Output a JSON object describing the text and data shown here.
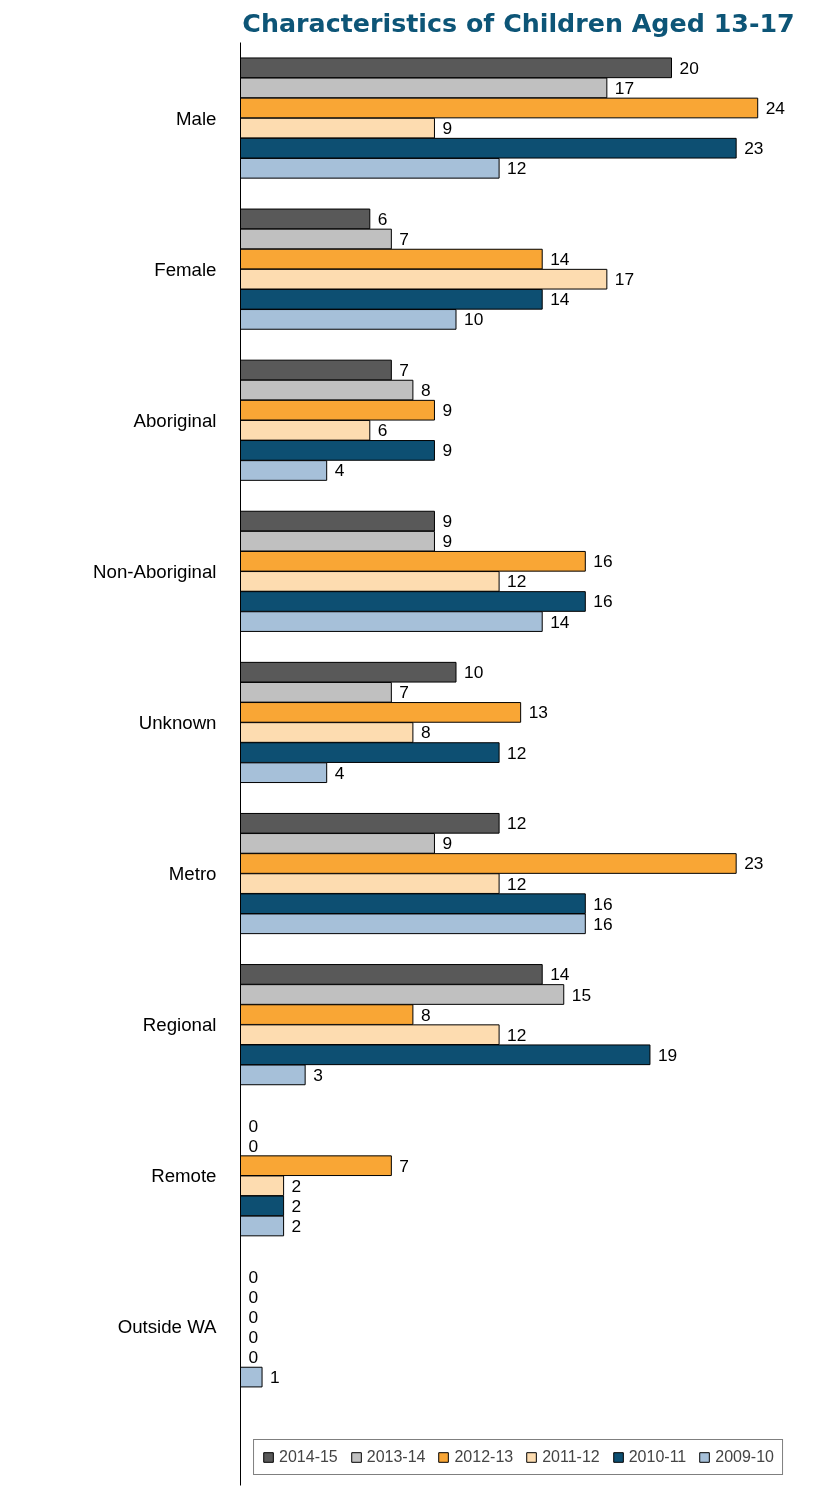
{
  "chart_data": {
    "type": "bar",
    "orientation": "horizontal",
    "title": "Characteristics of Children Aged 13-17",
    "categories": [
      "Male",
      "Female",
      "Aboriginal",
      "Non-Aboriginal",
      "Unknown",
      "Metro",
      "Regional",
      "Remote",
      "Outside WA"
    ],
    "series": [
      {
        "name": "2014-15",
        "color": "#595959",
        "values": [
          20,
          6,
          7,
          9,
          10,
          12,
          14,
          0,
          0
        ]
      },
      {
        "name": "2013-14",
        "color": "#c0c0c0",
        "values": [
          17,
          7,
          8,
          9,
          7,
          9,
          15,
          0,
          0
        ]
      },
      {
        "name": "2012-13",
        "color": "#f9a635",
        "values": [
          24,
          14,
          9,
          16,
          13,
          23,
          8,
          7,
          0
        ]
      },
      {
        "name": "2011-12",
        "color": "#fddcb0",
        "values": [
          9,
          17,
          6,
          12,
          8,
          12,
          12,
          2,
          0
        ]
      },
      {
        "name": "2010-11",
        "color": "#0d4f72",
        "values": [
          23,
          14,
          9,
          16,
          12,
          16,
          19,
          2,
          0
        ]
      },
      {
        "name": "2009-10",
        "color": "#a6c0d9",
        "values": [
          12,
          10,
          4,
          14,
          4,
          16,
          3,
          2,
          1
        ]
      }
    ],
    "tick_labels": "y",
    "data_labels": true,
    "legend": "bottom",
    "grid": false
  }
}
